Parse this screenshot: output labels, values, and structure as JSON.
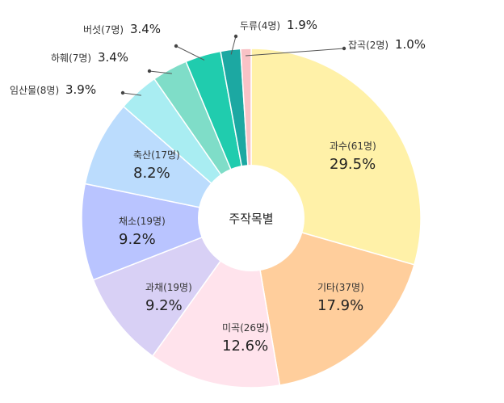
{
  "chart_data": {
    "type": "pie",
    "title": "주작목별",
    "slices": [
      {
        "name": "과수",
        "count": "(61명)",
        "value": 29.5,
        "label": "29.5%",
        "color": "#FFF1A8"
      },
      {
        "name": "기타",
        "count": "(37명)",
        "value": 17.9,
        "label": "17.9%",
        "color": "#FFCE9C"
      },
      {
        "name": "미곡",
        "count": "(26명)",
        "value": 12.6,
        "label": "12.6%",
        "color": "#FFE3EC"
      },
      {
        "name": "과채",
        "count": "(19명)",
        "value": 9.2,
        "label": "9.2%",
        "color": "#D8D0F5"
      },
      {
        "name": "채소",
        "count": "(19명)",
        "value": 9.2,
        "label": "9.2%",
        "color": "#B9C4FF"
      },
      {
        "name": "축산",
        "count": "(17명)",
        "value": 8.2,
        "label": "8.2%",
        "color": "#BBDCFD"
      },
      {
        "name": "임산물",
        "count": "(8명)",
        "value": 3.9,
        "label": "3.9%",
        "color": "#A9EDF2"
      },
      {
        "name": "하훼",
        "count": "(7명)",
        "value": 3.4,
        "label": "3.4%",
        "color": "#7FDDC8"
      },
      {
        "name": "버섯",
        "count": "(7명)",
        "value": 3.4,
        "label": "3.4%",
        "color": "#20CCAE"
      },
      {
        "name": "두류",
        "count": "(4명)",
        "value": 1.9,
        "label": "1.9%",
        "color": "#1CA8A2"
      },
      {
        "name": "잡곡",
        "count": "(2명)",
        "value": 1.0,
        "label": "1.0%",
        "color": "#F9C2C6"
      }
    ]
  }
}
